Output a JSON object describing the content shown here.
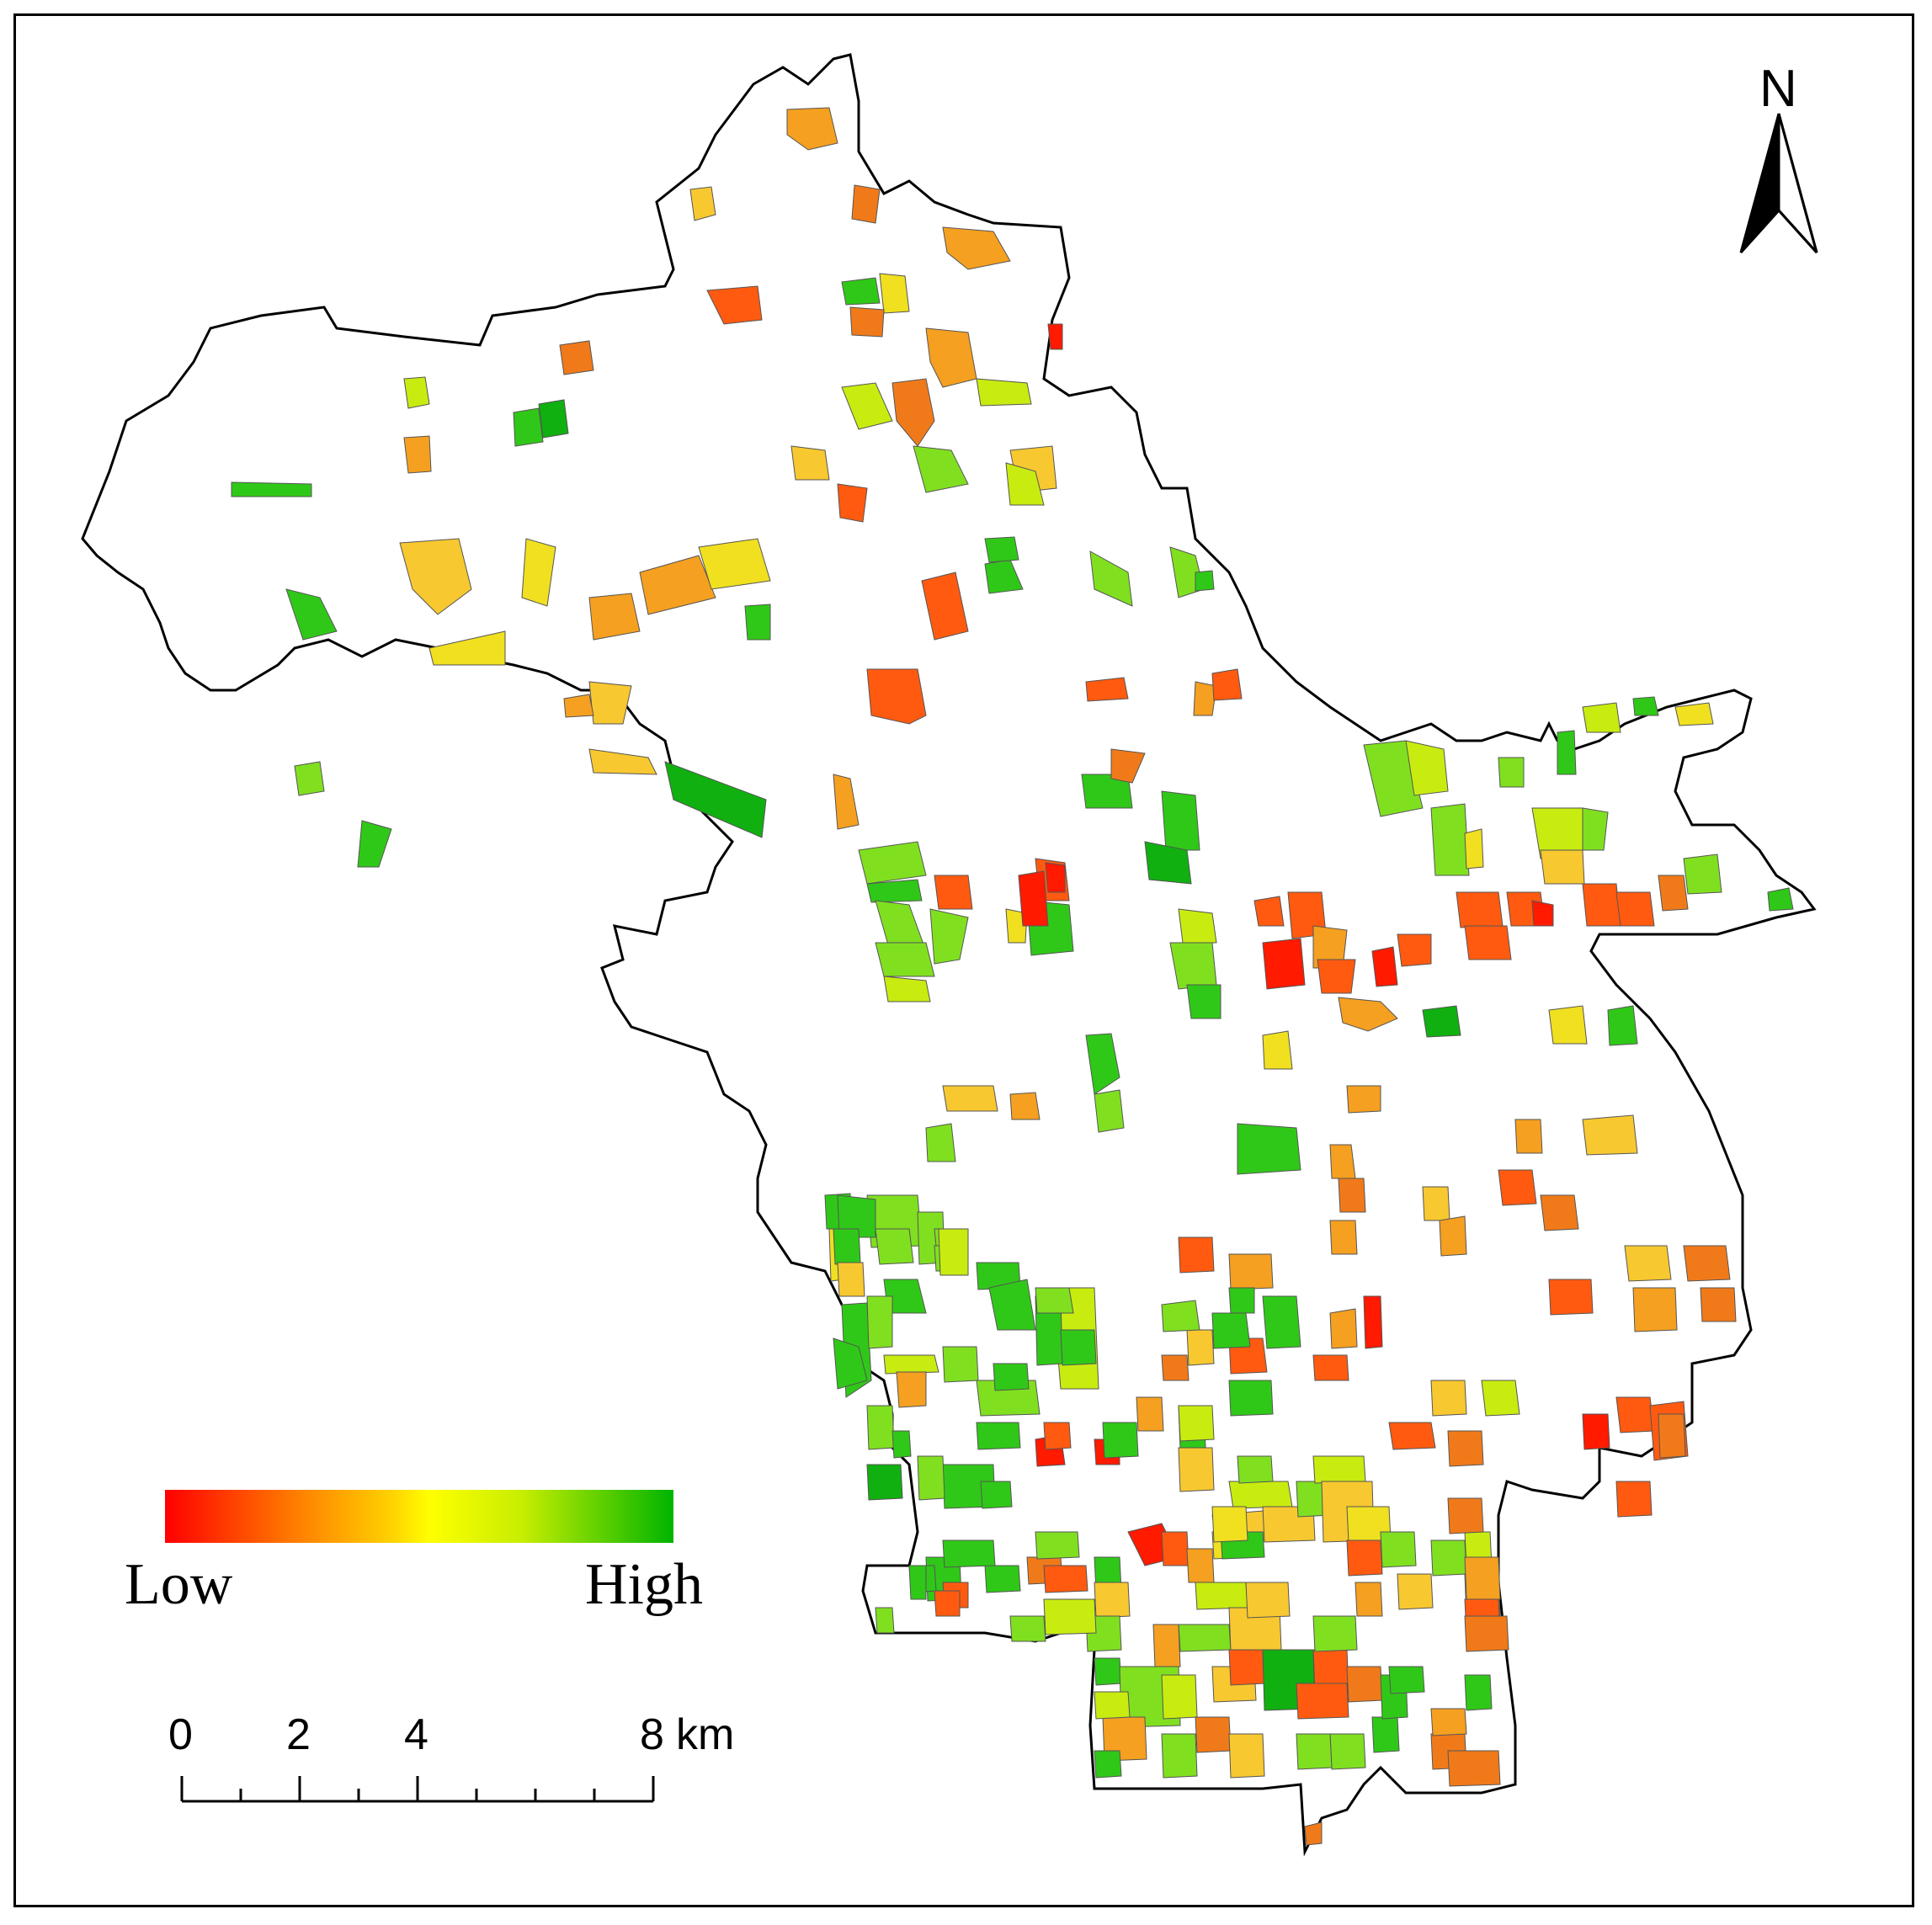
{
  "legend": {
    "low_label": "Low",
    "high_label": "High",
    "colors": [
      "#ff0000",
      "#ff7a00",
      "#ffd400",
      "#ffff00",
      "#c8ee00",
      "#00b400"
    ]
  },
  "scale_bar": {
    "ticks": [
      "0",
      "2",
      "4",
      "8"
    ],
    "unit": "km"
  },
  "north_arrow": {
    "label": "N"
  },
  "palette": {
    "red": "#ff1a00",
    "red_orange": "#ff5a10",
    "orange": "#f07a1a",
    "light_orange": "#f5a020",
    "yellow_orange": "#f8c830",
    "yellow": "#f0e020",
    "yellow_green": "#c8ec10",
    "light_green": "#80e020",
    "green": "#30c818",
    "dark_green": "#10b010"
  }
}
